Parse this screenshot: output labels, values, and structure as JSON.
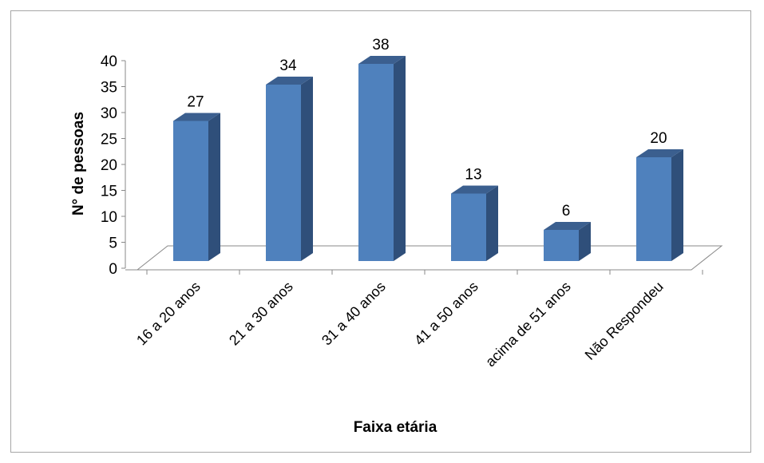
{
  "chart_data": {
    "type": "bar",
    "style": "3d-column",
    "categories": [
      "16 a 20 anos",
      "21 a 30 anos",
      "31 a 40 anos",
      "41 a 50 anos",
      "acima de 51 anos",
      "Não Respondeu"
    ],
    "values": [
      27,
      34,
      38,
      13,
      6,
      20
    ],
    "data_labels": [
      "27",
      "34",
      "38",
      "13",
      "6",
      "20"
    ],
    "xlabel": "Faixa etária",
    "ylabel": "N° de pessoas",
    "ylim": [
      0,
      40
    ],
    "yticks": [
      "0",
      "5",
      "10",
      "15",
      "20",
      "25",
      "30",
      "35",
      "40"
    ],
    "grid": false,
    "legend": "none",
    "colors": {
      "bar_front": "#4f81bd",
      "bar_side": "#2f4f7a",
      "bar_top": "#3b5f8f",
      "floor_line": "#888888"
    }
  }
}
